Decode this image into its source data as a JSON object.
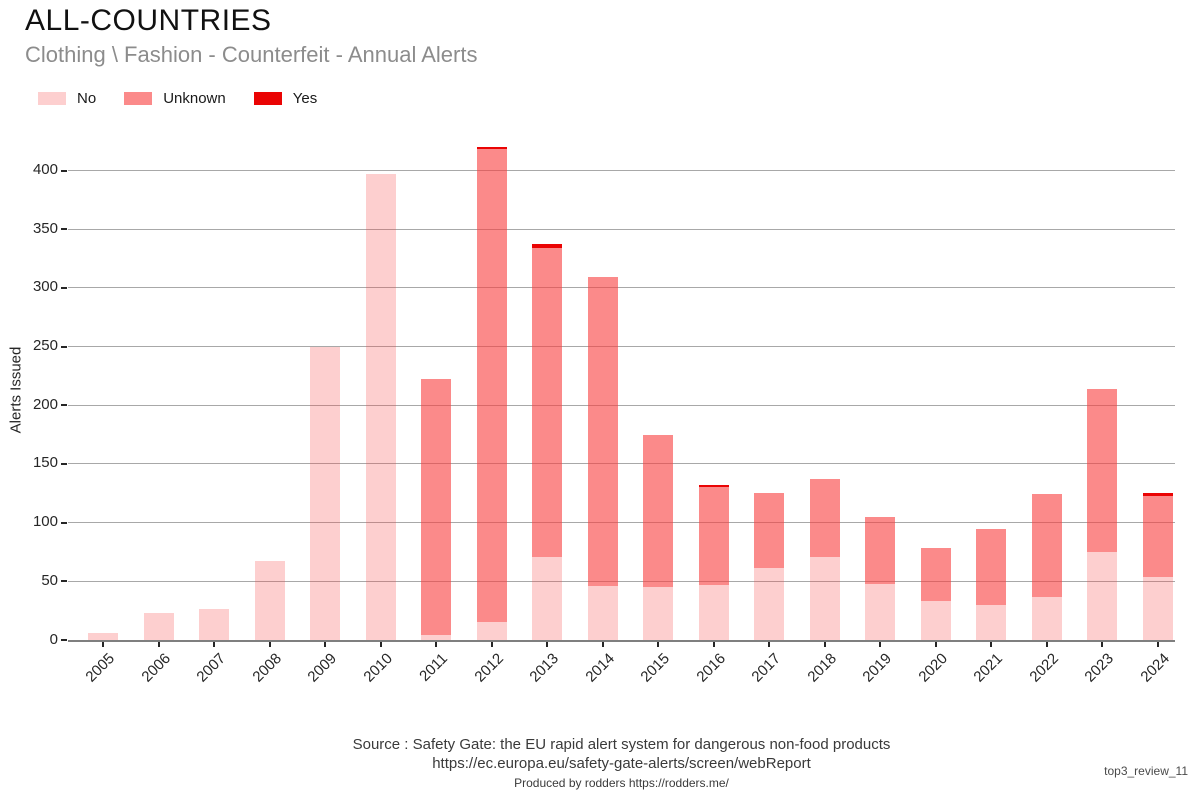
{
  "header": {
    "title": "ALL-COUNTRIES",
    "subtitle": "Clothing \\ Fashion - Counterfeit - Annual Alerts"
  },
  "chart_data": {
    "type": "bar",
    "stacked": true,
    "title": "ALL-COUNTRIES",
    "subtitle": "Clothing \\ Fashion - Counterfeit - Annual Alerts",
    "categories": [
      "2005",
      "2006",
      "2007",
      "2008",
      "2009",
      "2010",
      "2011",
      "2012",
      "2013",
      "2014",
      "2015",
      "2016",
      "2017",
      "2018",
      "2019",
      "2020",
      "2021",
      "2022",
      "2023",
      "2024"
    ],
    "series": [
      {
        "name": "No",
        "color": "#f94040",
        "alpha": 0.25,
        "color_on_white": "#fcd0d0",
        "values": [
          6,
          23,
          26,
          67,
          250,
          397,
          4,
          15,
          71,
          46,
          45,
          47,
          61,
          71,
          48,
          33,
          30,
          37,
          75,
          54
        ]
      },
      {
        "name": "Unknown",
        "color": "#f94040",
        "alpha": 0.61,
        "color_on_white": "#fb8a8a",
        "values": [
          0,
          0,
          0,
          0,
          0,
          0,
          218,
          403,
          263,
          263,
          130,
          83,
          64,
          66,
          57,
          45,
          65,
          87,
          139,
          69
        ]
      },
      {
        "name": "Yes",
        "color": "#ea0404",
        "alpha": 1.0,
        "color_on_white": "#ea0404",
        "values": [
          0,
          0,
          0,
          0,
          0,
          0,
          0,
          2,
          3,
          0,
          0,
          2,
          0,
          0,
          0,
          0,
          0,
          0,
          0,
          2
        ]
      }
    ],
    "totals": [
      6,
      23,
      26,
      67,
      250,
      397,
      222,
      420,
      337,
      309,
      175,
      132,
      125,
      137,
      105,
      78,
      95,
      124,
      214,
      125
    ],
    "xlabel": "",
    "ylabel": "Alerts Issued",
    "yticks": [
      0,
      50,
      100,
      150,
      200,
      250,
      300,
      350,
      400
    ],
    "ylim": [
      0,
      426
    ],
    "grid": true,
    "legend_position": "top-left"
  },
  "footer": {
    "source_line1": "Source : Safety Gate: the EU rapid alert system for dangerous non-food products",
    "source_line2": "https://ec.europa.eu/safety-gate-alerts/screen/webReport",
    "produced_by": "Produced by rodders https://rodders.me/",
    "watermark": "top3_review_11"
  }
}
